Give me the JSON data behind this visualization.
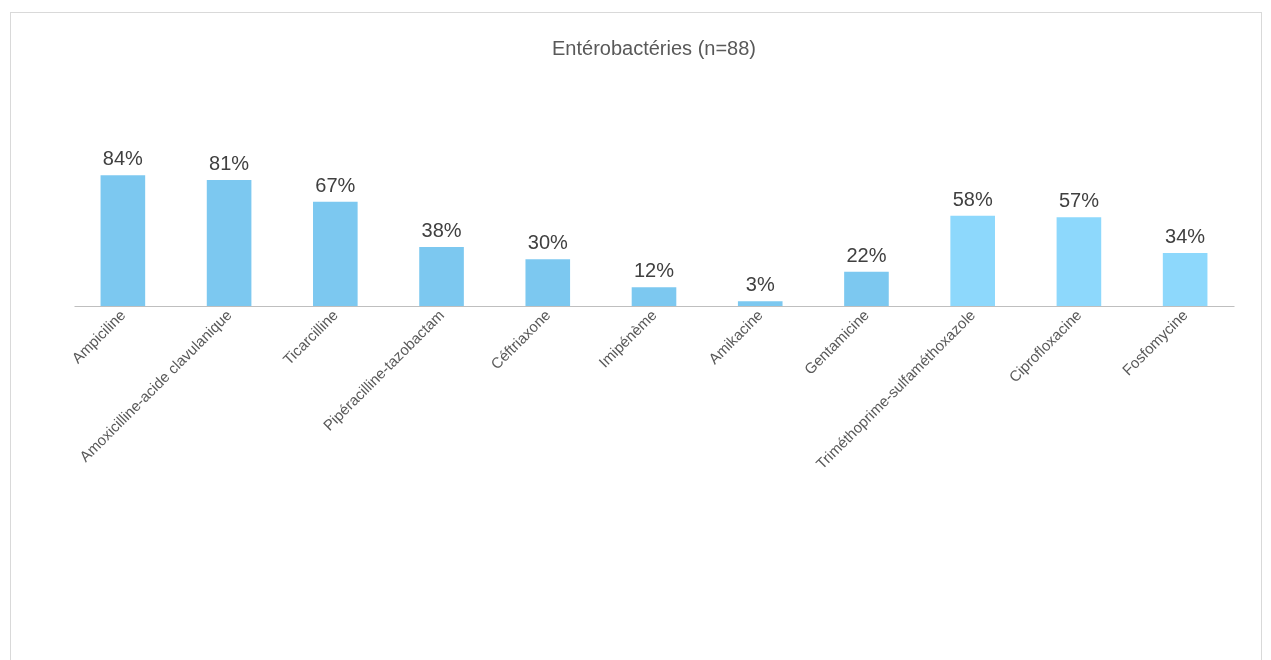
{
  "chart_data": {
    "type": "bar",
    "title": "Entérobactéries (n=88)",
    "categories": [
      "Ampiciline",
      "Amoxicilline-acide clavulanique",
      "Ticarcilline",
      "Pipéracilline-tazobactam",
      "Céftriaxone",
      "Imipénème",
      "Amikacine",
      "Gentamicine",
      "Triméthoprime-sulfaméthoxazole",
      "Ciprofloxacine",
      "Fosfomycine"
    ],
    "values": [
      84,
      81,
      67,
      38,
      30,
      12,
      3,
      22,
      58,
      57,
      34
    ],
    "value_labels": [
      "84%",
      "81%",
      "67%",
      "38%",
      "30%",
      "12%",
      "3%",
      "22%",
      "58%",
      "57%",
      "34%"
    ],
    "colors": [
      "#7cc8f0",
      "#7cc8f0",
      "#7cc8f0",
      "#7cc8f0",
      "#7cc8f0",
      "#7cc8f0",
      "#7cc8f0",
      "#7cc8f0",
      "#8dd8fc",
      "#8dd8fc",
      "#8dd8fc"
    ],
    "grid": false
  }
}
